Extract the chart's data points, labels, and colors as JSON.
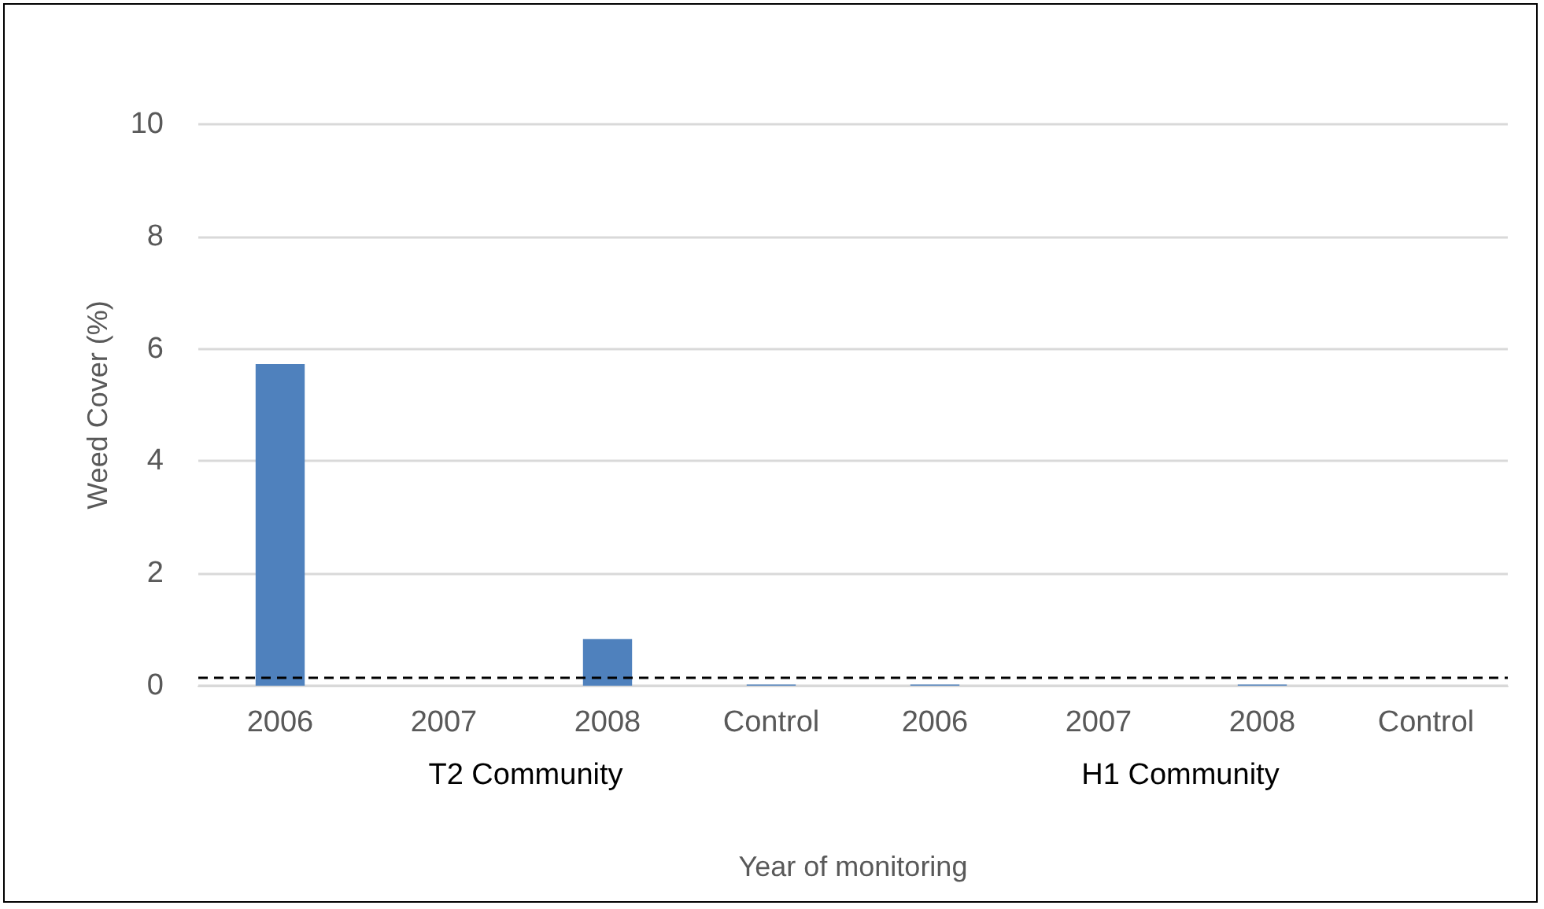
{
  "chart_data": {
    "type": "bar",
    "categories": [
      "2006",
      "2007",
      "2008",
      "Control",
      "2006",
      "2007",
      "2008",
      "Control"
    ],
    "values": [
      5.73,
      0,
      0.83,
      0.02,
      0.02,
      0,
      0.02,
      0
    ],
    "color": "#4f81bd",
    "xlabel": "Year of monitoring",
    "ylabel": "Weed Cover (%)",
    "ylim": [
      0,
      10
    ],
    "yticks": [
      0,
      2,
      4,
      6,
      8,
      10
    ],
    "grid": "y",
    "ref_lines": [
      {
        "axis": "y",
        "value": 0.15,
        "color": "#000000",
        "line_style": "dashed"
      }
    ],
    "annotations": [
      "T2 Community",
      "H1 Community"
    ]
  }
}
